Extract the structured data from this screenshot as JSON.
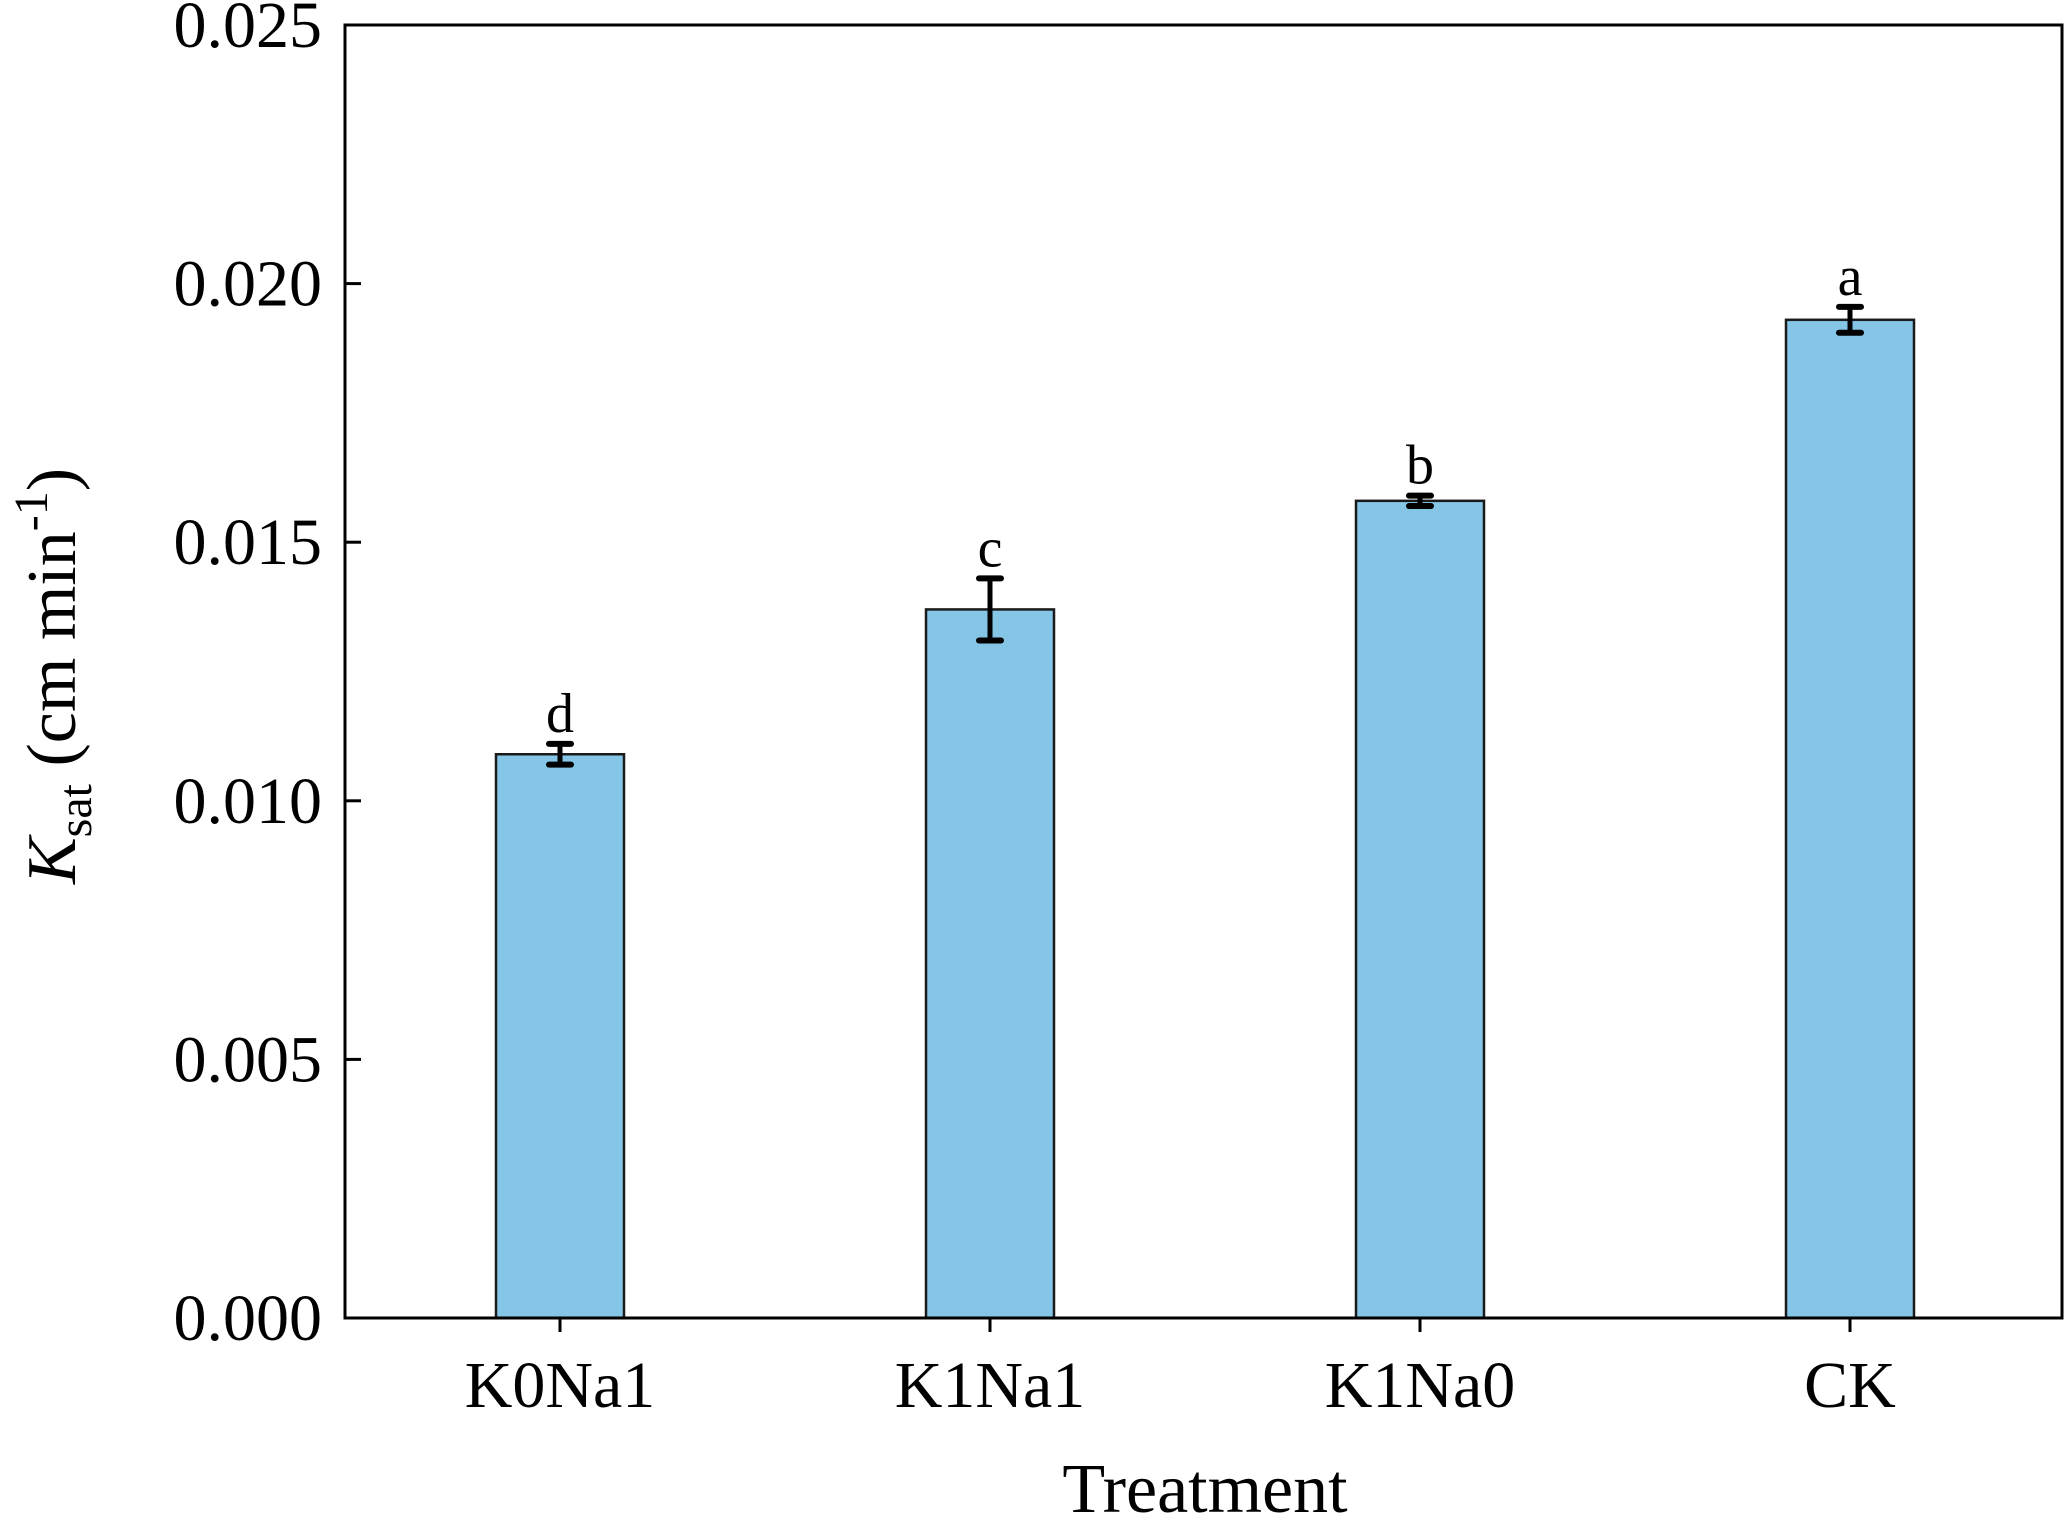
{
  "chart_data": {
    "type": "bar",
    "title": "",
    "xlabel": "Treatment",
    "ylabel": {
      "symbol": "K",
      "subscript": "sat",
      "unit_prefix": " (cm min",
      "unit_superscript": "-1",
      "unit_suffix": ")"
    },
    "categories": [
      "K0Na1",
      "K1Na1",
      "K1Na0",
      "CK"
    ],
    "series": [
      {
        "values": [
          0.0109,
          0.0137,
          0.0158,
          0.0193
        ],
        "errors": [
          0.0002,
          0.0006,
          0.0001,
          0.00025
        ],
        "significance": [
          "d",
          "c",
          "b",
          "a"
        ]
      }
    ],
    "ylim": [
      0,
      0.025
    ],
    "yticks": [
      "0.000",
      "0.005",
      "0.010",
      "0.015",
      "0.020",
      "0.025"
    ],
    "grid": false,
    "legend": "none",
    "colors": {
      "bar_fill": "#85c6e7",
      "bar_stroke": "#1a1a1a",
      "axis": "#000000",
      "text": "#000000"
    }
  }
}
